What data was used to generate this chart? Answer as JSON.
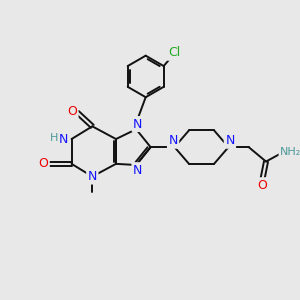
{
  "background_color": "#e8e8e8",
  "bond_color": "#111111",
  "atom_colors": {
    "N": "#1414ff",
    "O": "#ee0000",
    "Cl": "#22aa22",
    "H": "#4d9999",
    "C": "#111111"
  },
  "font_size": 8.5,
  "figsize": [
    3.0,
    3.0
  ],
  "dpi": 100
}
